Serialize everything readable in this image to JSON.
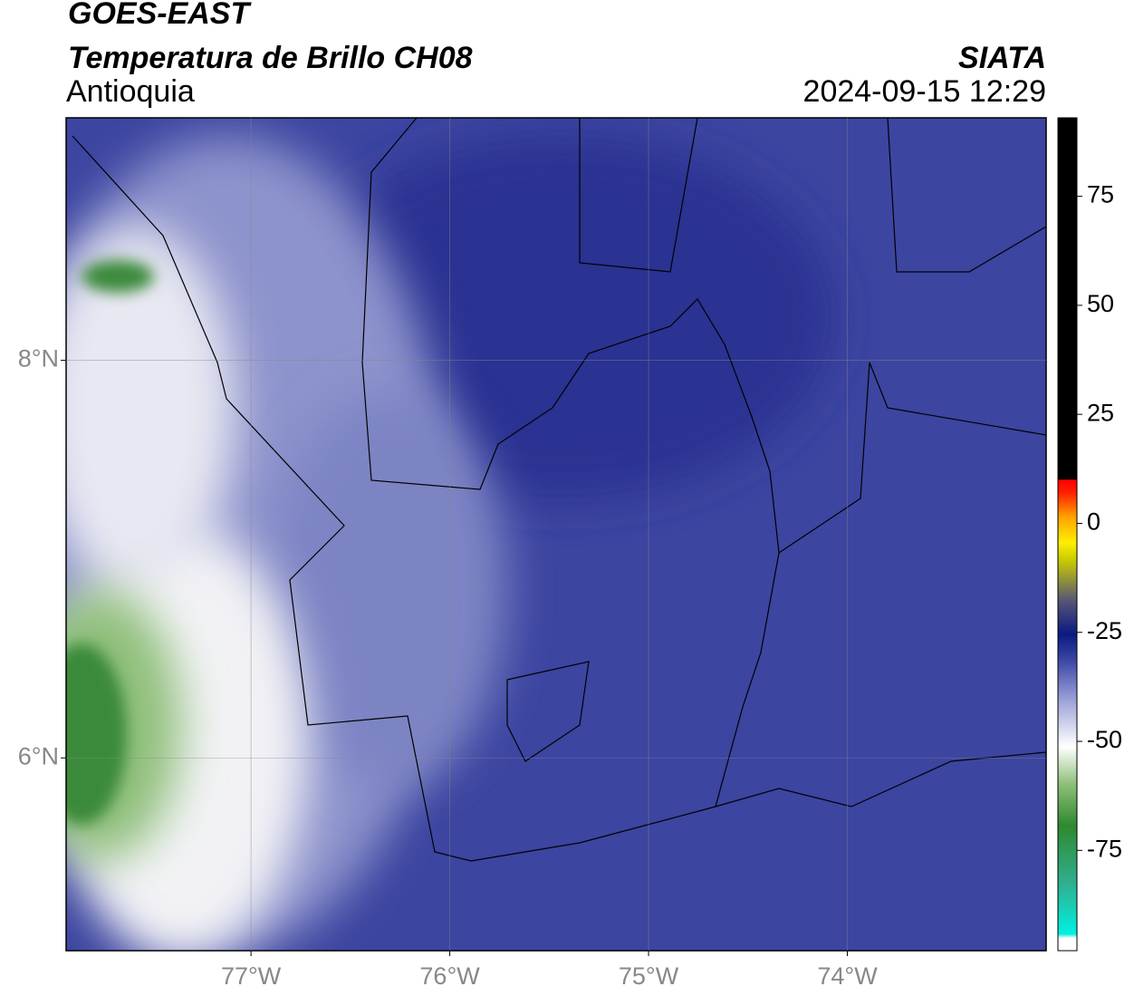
{
  "header": {
    "title": "GOES-EAST",
    "subtitle": "Temperatura de Brillo CH08",
    "region": "Antioquia",
    "source": "SIATA",
    "datetime": "2024-09-15 12:29"
  },
  "map": {
    "lonlim": [
      -77.93,
      -73.0
    ],
    "latlim": [
      5.03,
      9.22
    ],
    "lon_ticks": [
      {
        "value": -77,
        "label": "77°W"
      },
      {
        "value": -76,
        "label": "76°W"
      },
      {
        "value": -75,
        "label": "75°W"
      },
      {
        "value": -74,
        "label": "74°W"
      }
    ],
    "lat_ticks": [
      {
        "value": 8,
        "label": "8°N"
      },
      {
        "value": 6,
        "label": "6°N"
      }
    ]
  },
  "colorbar": {
    "limits": [
      -98,
      93
    ],
    "ticks": [
      75,
      50,
      25,
      0,
      -25,
      -50,
      -75
    ]
  }
}
